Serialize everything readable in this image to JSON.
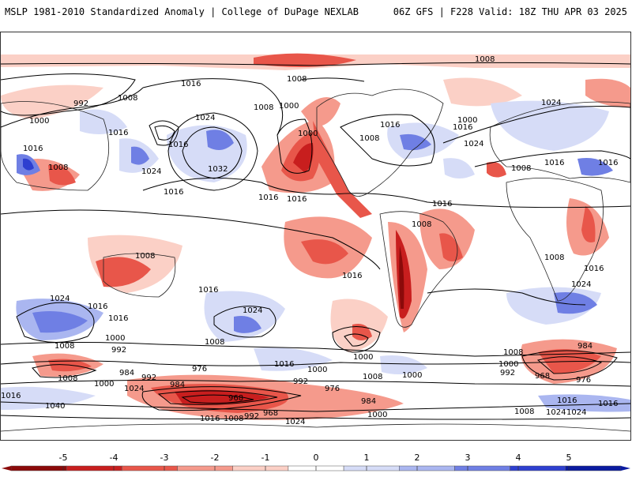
{
  "header": {
    "left_title": "MSLP 1981-2010 Standardized Anomaly | College of DuPage NEXLAB",
    "right_title": "06Z GFS | F228 Valid: 18Z THU APR 03 2025"
  },
  "colors": {
    "neg_strong": "#c81e1e",
    "neg_mid": "#e8564a",
    "neg_light": "#f59a8c",
    "neg_pale": "#fbd0c6",
    "pos_pale": "#d6dcf7",
    "pos_light": "#aab6f0",
    "pos_mid": "#6f7fe4",
    "pos_strong": "#2e3fd0",
    "contour": "#000000",
    "coastline": "#222222"
  },
  "isobar_labels": [
    "1008",
    "1008",
    "992",
    "1000",
    "1016",
    "1008",
    "1016",
    "1016",
    "1016",
    "1024",
    "1024",
    "1032",
    "1008",
    "1000",
    "1016",
    "1016",
    "1016",
    "1000",
    "1008",
    "1008",
    "1016",
    "1024",
    "1024",
    "1016",
    "1000",
    "1016",
    "1016",
    "1008",
    "1016",
    "1008",
    "1008",
    "1016",
    "1024",
    "1016",
    "1016",
    "1008",
    "1024",
    "1024",
    "1016",
    "1016",
    "1008",
    "1000",
    "992",
    "1016",
    "1000",
    "1008",
    "1008",
    "1000",
    "1008",
    "984",
    "1000",
    "992",
    "968",
    "976",
    "1008",
    "1000",
    "1024",
    "992",
    "984",
    "1000",
    "1016",
    "1024",
    "992",
    "1040",
    "984",
    "976",
    "1016",
    "968",
    "976",
    "968",
    "992",
    "1016",
    "1008",
    "1024",
    "984",
    "1000",
    "1008",
    "1016",
    "1024"
  ],
  "colorbar": {
    "ticks": [
      "-5",
      "-4",
      "-3",
      "-2",
      "-1",
      "0",
      "1",
      "2",
      "3",
      "4",
      "5"
    ],
    "colors": [
      "#8b0a0a",
      "#c81e1e",
      "#e8564a",
      "#f59a8c",
      "#fbd0c6",
      "#ffffff",
      "#d6dcf7",
      "#aab6f0",
      "#6f7fe4",
      "#2e3fd0",
      "#0a1aa0"
    ]
  }
}
